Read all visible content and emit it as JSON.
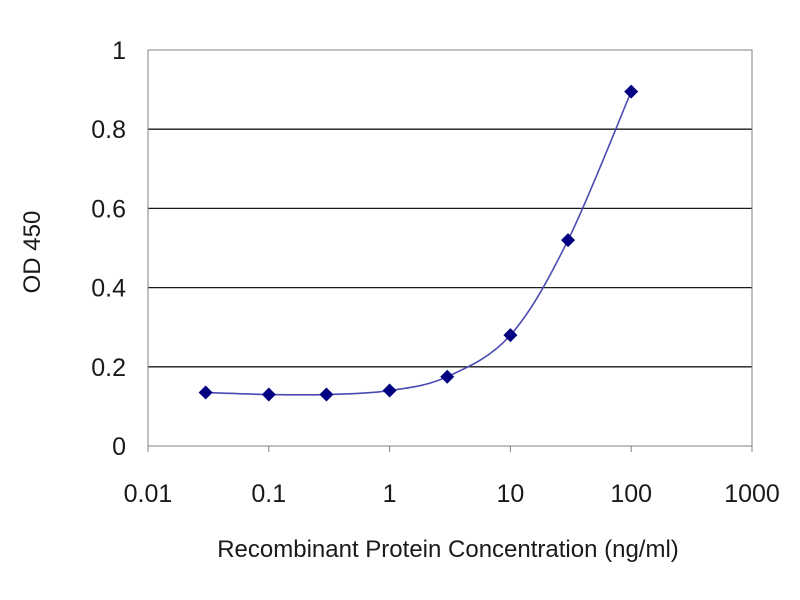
{
  "chart_data": {
    "type": "scatter",
    "title": "",
    "xlabel": "Recombinant Protein Concentration (ng/ml)",
    "ylabel": "OD 450",
    "xscale": "log",
    "xlim": [
      0.01,
      1000
    ],
    "ylim": [
      0,
      1
    ],
    "xticks": [
      0.01,
      0.1,
      1,
      10,
      100,
      1000
    ],
    "xtick_labels": [
      "0.01",
      "0.1",
      "1",
      "10",
      "100",
      "1000"
    ],
    "yticks": [
      0,
      0.2,
      0.4,
      0.6,
      0.8,
      1
    ],
    "ytick_labels": [
      "0",
      "0.2",
      "0.4",
      "0.6",
      "0.8",
      "1"
    ],
    "grid": "horizontal",
    "legend": "none",
    "series": [
      {
        "x": [
          0.03,
          0.1,
          0.3,
          1,
          3,
          10,
          30,
          100
        ],
        "y": [
          0.135,
          0.13,
          0.13,
          0.14,
          0.175,
          0.28,
          0.52,
          0.895
        ],
        "marker": "diamond",
        "fit_line": "smooth",
        "color": "#000080",
        "line_color": "#4b4bb4"
      }
    ]
  }
}
